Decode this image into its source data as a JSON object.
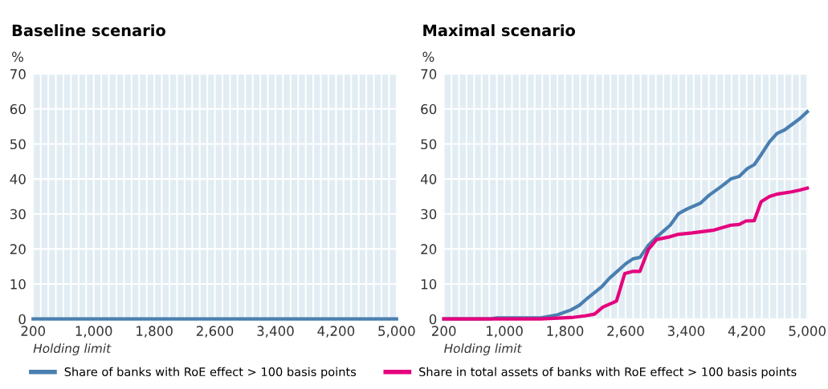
{
  "chart_data": [
    {
      "type": "line",
      "title": "Baseline scenario",
      "ylabel": "%",
      "xlabel": "Holding limit",
      "xlim": [
        200,
        5000
      ],
      "ylim": [
        0,
        70
      ],
      "yticks": [
        0,
        10,
        20,
        30,
        40,
        50,
        60,
        70
      ],
      "xticks": [
        200,
        {
          "value": 300,
          "label": null
        },
        {
          "value": 400,
          "label": null
        },
        {
          "value": 500,
          "label": null
        },
        {
          "value": 600,
          "label": null
        },
        {
          "value": 700,
          "label": null
        },
        {
          "value": 800,
          "label": null
        },
        {
          "value": 900,
          "label": null
        },
        {
          "value": 1000,
          "label": "1,000"
        },
        {
          "value": 1100,
          "label": null
        },
        {
          "value": 1200,
          "label": null
        },
        {
          "value": 1300,
          "label": null
        },
        {
          "value": 1400,
          "label": null
        },
        {
          "value": 1500,
          "label": null
        },
        {
          "value": 1600,
          "label": null
        },
        {
          "value": 1700,
          "label": null
        },
        {
          "value": 1800,
          "label": "1,800"
        },
        {
          "value": 1900,
          "label": null
        },
        {
          "value": 2000,
          "label": null
        },
        {
          "value": 2100,
          "label": null
        },
        {
          "value": 2200,
          "label": null
        },
        {
          "value": 2300,
          "label": null
        },
        {
          "value": 2400,
          "label": null
        },
        {
          "value": 2500,
          "label": null
        },
        {
          "value": 2600,
          "label": "2,600"
        },
        {
          "value": 2700,
          "label": null
        },
        {
          "value": 2800,
          "label": null
        },
        {
          "value": 2900,
          "label": null
        },
        {
          "value": 3000,
          "label": null
        },
        {
          "value": 3100,
          "label": null
        },
        {
          "value": 3200,
          "label": null
        },
        {
          "value": 3300,
          "label": null
        },
        {
          "value": 3400,
          "label": "3,400"
        },
        {
          "value": 3500,
          "label": null
        },
        {
          "value": 3600,
          "label": null
        },
        {
          "value": 3700,
          "label": null
        },
        {
          "value": 3800,
          "label": null
        },
        {
          "value": 3900,
          "label": null
        },
        {
          "value": 4000,
          "label": null
        },
        {
          "value": 4100,
          "label": null
        },
        {
          "value": 4200,
          "label": "4,200"
        },
        {
          "value": 4300,
          "label": null
        },
        {
          "value": 4400,
          "label": null
        },
        {
          "value": 4500,
          "label": null
        },
        {
          "value": 4600,
          "label": null
        },
        {
          "value": 4700,
          "label": null
        },
        {
          "value": 4800,
          "label": null
        },
        {
          "value": 4900,
          "label": null
        },
        {
          "value": 5000,
          "label": "5,000"
        }
      ],
      "grid": true,
      "legend": false,
      "series": [
        {
          "color": "#4a7fb0",
          "x": [
            200,
            5000
          ],
          "values": [
            0,
            0
          ]
        }
      ]
    },
    {
      "type": "line",
      "title": "Maximal scenario",
      "ylabel": "%",
      "xlabel": "Holding limit",
      "xlim": [
        200,
        5000
      ],
      "ylim": [
        0,
        70
      ],
      "yticks": [
        0,
        10,
        20,
        30,
        40,
        50,
        60,
        70
      ],
      "xticks": [
        200,
        {
          "value": 300,
          "label": null
        },
        {
          "value": 400,
          "label": null
        },
        {
          "value": 500,
          "label": null
        },
        {
          "value": 600,
          "label": null
        },
        {
          "value": 700,
          "label": null
        },
        {
          "value": 800,
          "label": null
        },
        {
          "value": 900,
          "label": null
        },
        {
          "value": 1000,
          "label": "1,000"
        },
        {
          "value": 1100,
          "label": null
        },
        {
          "value": 1200,
          "label": null
        },
        {
          "value": 1300,
          "label": null
        },
        {
          "value": 1400,
          "label": null
        },
        {
          "value": 1500,
          "label": null
        },
        {
          "value": 1600,
          "label": null
        },
        {
          "value": 1700,
          "label": null
        },
        {
          "value": 1800,
          "label": "1,800"
        },
        {
          "value": 1900,
          "label": null
        },
        {
          "value": 2000,
          "label": null
        },
        {
          "value": 2100,
          "label": null
        },
        {
          "value": 2200,
          "label": null
        },
        {
          "value": 2300,
          "label": null
        },
        {
          "value": 2400,
          "label": null
        },
        {
          "value": 2500,
          "label": null
        },
        {
          "value": 2600,
          "label": "2,600"
        },
        {
          "value": 2700,
          "label": null
        },
        {
          "value": 2800,
          "label": null
        },
        {
          "value": 2900,
          "label": null
        },
        {
          "value": 3000,
          "label": null
        },
        {
          "value": 3100,
          "label": null
        },
        {
          "value": 3200,
          "label": null
        },
        {
          "value": 3300,
          "label": null
        },
        {
          "value": 3400,
          "label": "3,400"
        },
        {
          "value": 3500,
          "label": null
        },
        {
          "value": 3600,
          "label": null
        },
        {
          "value": 3700,
          "label": null
        },
        {
          "value": 3800,
          "label": null
        },
        {
          "value": 3900,
          "label": null
        },
        {
          "value": 4000,
          "label": null
        },
        {
          "value": 4100,
          "label": null
        },
        {
          "value": 4200,
          "label": "4,200"
        },
        {
          "value": 4300,
          "label": null
        },
        {
          "value": 4400,
          "label": null
        },
        {
          "value": 4500,
          "label": null
        },
        {
          "value": 4600,
          "label": null
        },
        {
          "value": 4700,
          "label": null
        },
        {
          "value": 4800,
          "label": null
        },
        {
          "value": 4900,
          "label": null
        },
        {
          "value": 5000,
          "label": "5,000"
        }
      ],
      "grid": true,
      "legend": "bottom",
      "series": [
        {
          "name": "Share of banks with RoE effect > 100 basis points",
          "color": "#4a7fb0",
          "x": [
            200,
            800,
            900,
            1480,
            1700,
            1880,
            1990,
            2100,
            2280,
            2390,
            2610,
            2700,
            2790,
            2900,
            3010,
            3190,
            3300,
            3410,
            3590,
            3700,
            3880,
            3990,
            4100,
            4210,
            4300,
            4390,
            4500,
            4600,
            4700,
            4900,
            5000
          ],
          "values": [
            0,
            0,
            0.3,
            0.3,
            1.2,
            2.6,
            3.9,
            6.0,
            9.1,
            11.7,
            15.9,
            17.2,
            17.6,
            21.0,
            23.4,
            26.8,
            30.1,
            31.4,
            33.1,
            35.3,
            38.1,
            40.0,
            40.7,
            43.0,
            44.1,
            46.9,
            50.6,
            53.0,
            54.0,
            57.2,
            59.2
          ]
        },
        {
          "name": "Share in total assets of banks with RoE effect > 100 basis points",
          "color": "#e5007d",
          "x": [
            200,
            1480,
            1880,
            2070,
            2190,
            2300,
            2480,
            2590,
            2700,
            2790,
            2900,
            3010,
            3190,
            3300,
            3480,
            3770,
            3990,
            4100,
            4190,
            4300,
            4390,
            4500,
            4610,
            4790,
            4900,
            5000
          ],
          "values": [
            0,
            0,
            0.4,
            0.9,
            1.4,
            3.4,
            5.1,
            13.0,
            13.6,
            13.6,
            19.8,
            22.7,
            23.5,
            24.2,
            24.6,
            25.4,
            26.8,
            27.0,
            28.0,
            28.1,
            33.5,
            35.0,
            35.7,
            36.3,
            36.8,
            37.4
          ]
        }
      ]
    }
  ]
}
